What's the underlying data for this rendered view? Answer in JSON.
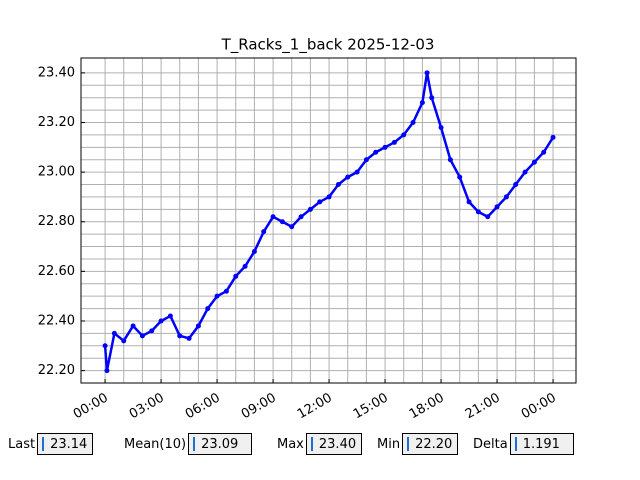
{
  "chart_data": {
    "type": "line",
    "title": "T_Racks_1_back 2025-12-03",
    "x": [
      0,
      0.1,
      0.5,
      1,
      1.5,
      2,
      2.5,
      3,
      3.5,
      4,
      4.5,
      5,
      5.5,
      6,
      6.5,
      7,
      7.5,
      8,
      8.5,
      9,
      9.5,
      10,
      10.5,
      11,
      11.5,
      12,
      12.5,
      13,
      13.5,
      14,
      14.5,
      15,
      15.5,
      16,
      16.5,
      17,
      17.25,
      17.5,
      18,
      18.5,
      19,
      19.5,
      20,
      20.5,
      21,
      21.5,
      22,
      22.5,
      23,
      23.5,
      24
    ],
    "series": [
      {
        "name": "T_Racks_1_back",
        "color": "#0000ff",
        "values": [
          22.3,
          22.2,
          22.35,
          22.32,
          22.38,
          22.34,
          22.36,
          22.4,
          22.42,
          22.34,
          22.33,
          22.38,
          22.45,
          22.5,
          22.52,
          22.58,
          22.62,
          22.68,
          22.76,
          22.82,
          22.8,
          22.78,
          22.82,
          22.85,
          22.88,
          22.9,
          22.95,
          22.98,
          23.0,
          23.05,
          23.08,
          23.1,
          23.12,
          23.15,
          23.2,
          23.28,
          23.4,
          23.3,
          23.18,
          23.05,
          22.98,
          22.88,
          22.84,
          22.82,
          22.86,
          22.9,
          22.95,
          23.0,
          23.04,
          23.08,
          23.14
        ]
      }
    ],
    "xlim": [
      -1.29,
      25.23
    ],
    "xticks": [
      {
        "value": 0,
        "label": "00:00"
      },
      {
        "value": 3,
        "label": "03:00"
      },
      {
        "value": 6,
        "label": "06:00"
      },
      {
        "value": 9,
        "label": "09:00"
      },
      {
        "value": 12,
        "label": "12:00"
      },
      {
        "value": 15,
        "label": "15:00"
      },
      {
        "value": 18,
        "label": "18:00"
      },
      {
        "value": 21,
        "label": "21:00"
      },
      {
        "value": 24,
        "label": "00:00"
      }
    ],
    "ylim": [
      22.15,
      23.46
    ],
    "yticks": [
      {
        "value": 22.2,
        "label": "22.20"
      },
      {
        "value": 22.4,
        "label": "22.40"
      },
      {
        "value": 22.6,
        "label": "22.60"
      },
      {
        "value": 22.8,
        "label": "22.80"
      },
      {
        "value": 23.0,
        "label": "23.00"
      },
      {
        "value": 23.2,
        "label": "23.20"
      },
      {
        "value": 23.4,
        "label": "23.40"
      }
    ],
    "grid": true
  },
  "fields": [
    {
      "label": "Last",
      "value": "23.14"
    },
    {
      "label": "Mean(10)",
      "value": "23.09"
    },
    {
      "label": "Max",
      "value": "23.40"
    },
    {
      "label": "Min",
      "value": "22.20"
    },
    {
      "label": "Delta",
      "value": "1.191"
    }
  ]
}
